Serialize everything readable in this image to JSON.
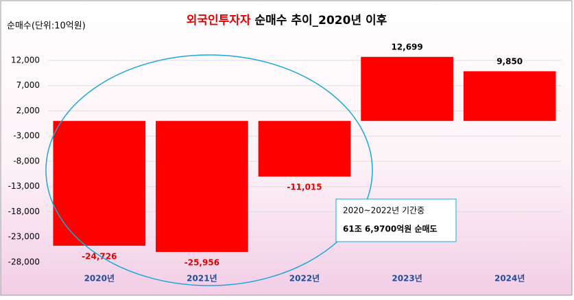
{
  "chart_data": {
    "type": "bar",
    "title": {
      "highlight": "외국인투자자",
      "rest": "순매수 추이_2020년 이후"
    },
    "y_label": "순매수(단위:10억원)",
    "categories": [
      "2020년",
      "2021년",
      "2022년",
      "2023년",
      "2024년"
    ],
    "values": [
      -24726,
      -25956,
      -11015,
      12699,
      9850
    ],
    "value_labels": [
      "-24,726",
      "-25,956",
      "-11,015",
      "12,699",
      "9,850"
    ],
    "color": "#ff0000",
    "ylim": [
      -28000,
      14500
    ],
    "yticks": [
      {
        "value": 12000,
        "label": "12,000"
      },
      {
        "value": 7000,
        "label": "7,000"
      },
      {
        "value": 2000,
        "label": "2,000"
      },
      {
        "value": -3000,
        "label": "-3,000"
      },
      {
        "value": -8000,
        "label": "-8,000"
      },
      {
        "value": -13000,
        "label": "-13,000"
      },
      {
        "value": -18000,
        "label": "-18,000"
      },
      {
        "value": -23000,
        "label": "-23,000"
      },
      {
        "value": -28000,
        "label": "-28,000"
      }
    ],
    "grid": true,
    "annotation": {
      "line1": "2020~2022년 기간중",
      "line2": "61조 6,9700억원 순매도"
    }
  }
}
